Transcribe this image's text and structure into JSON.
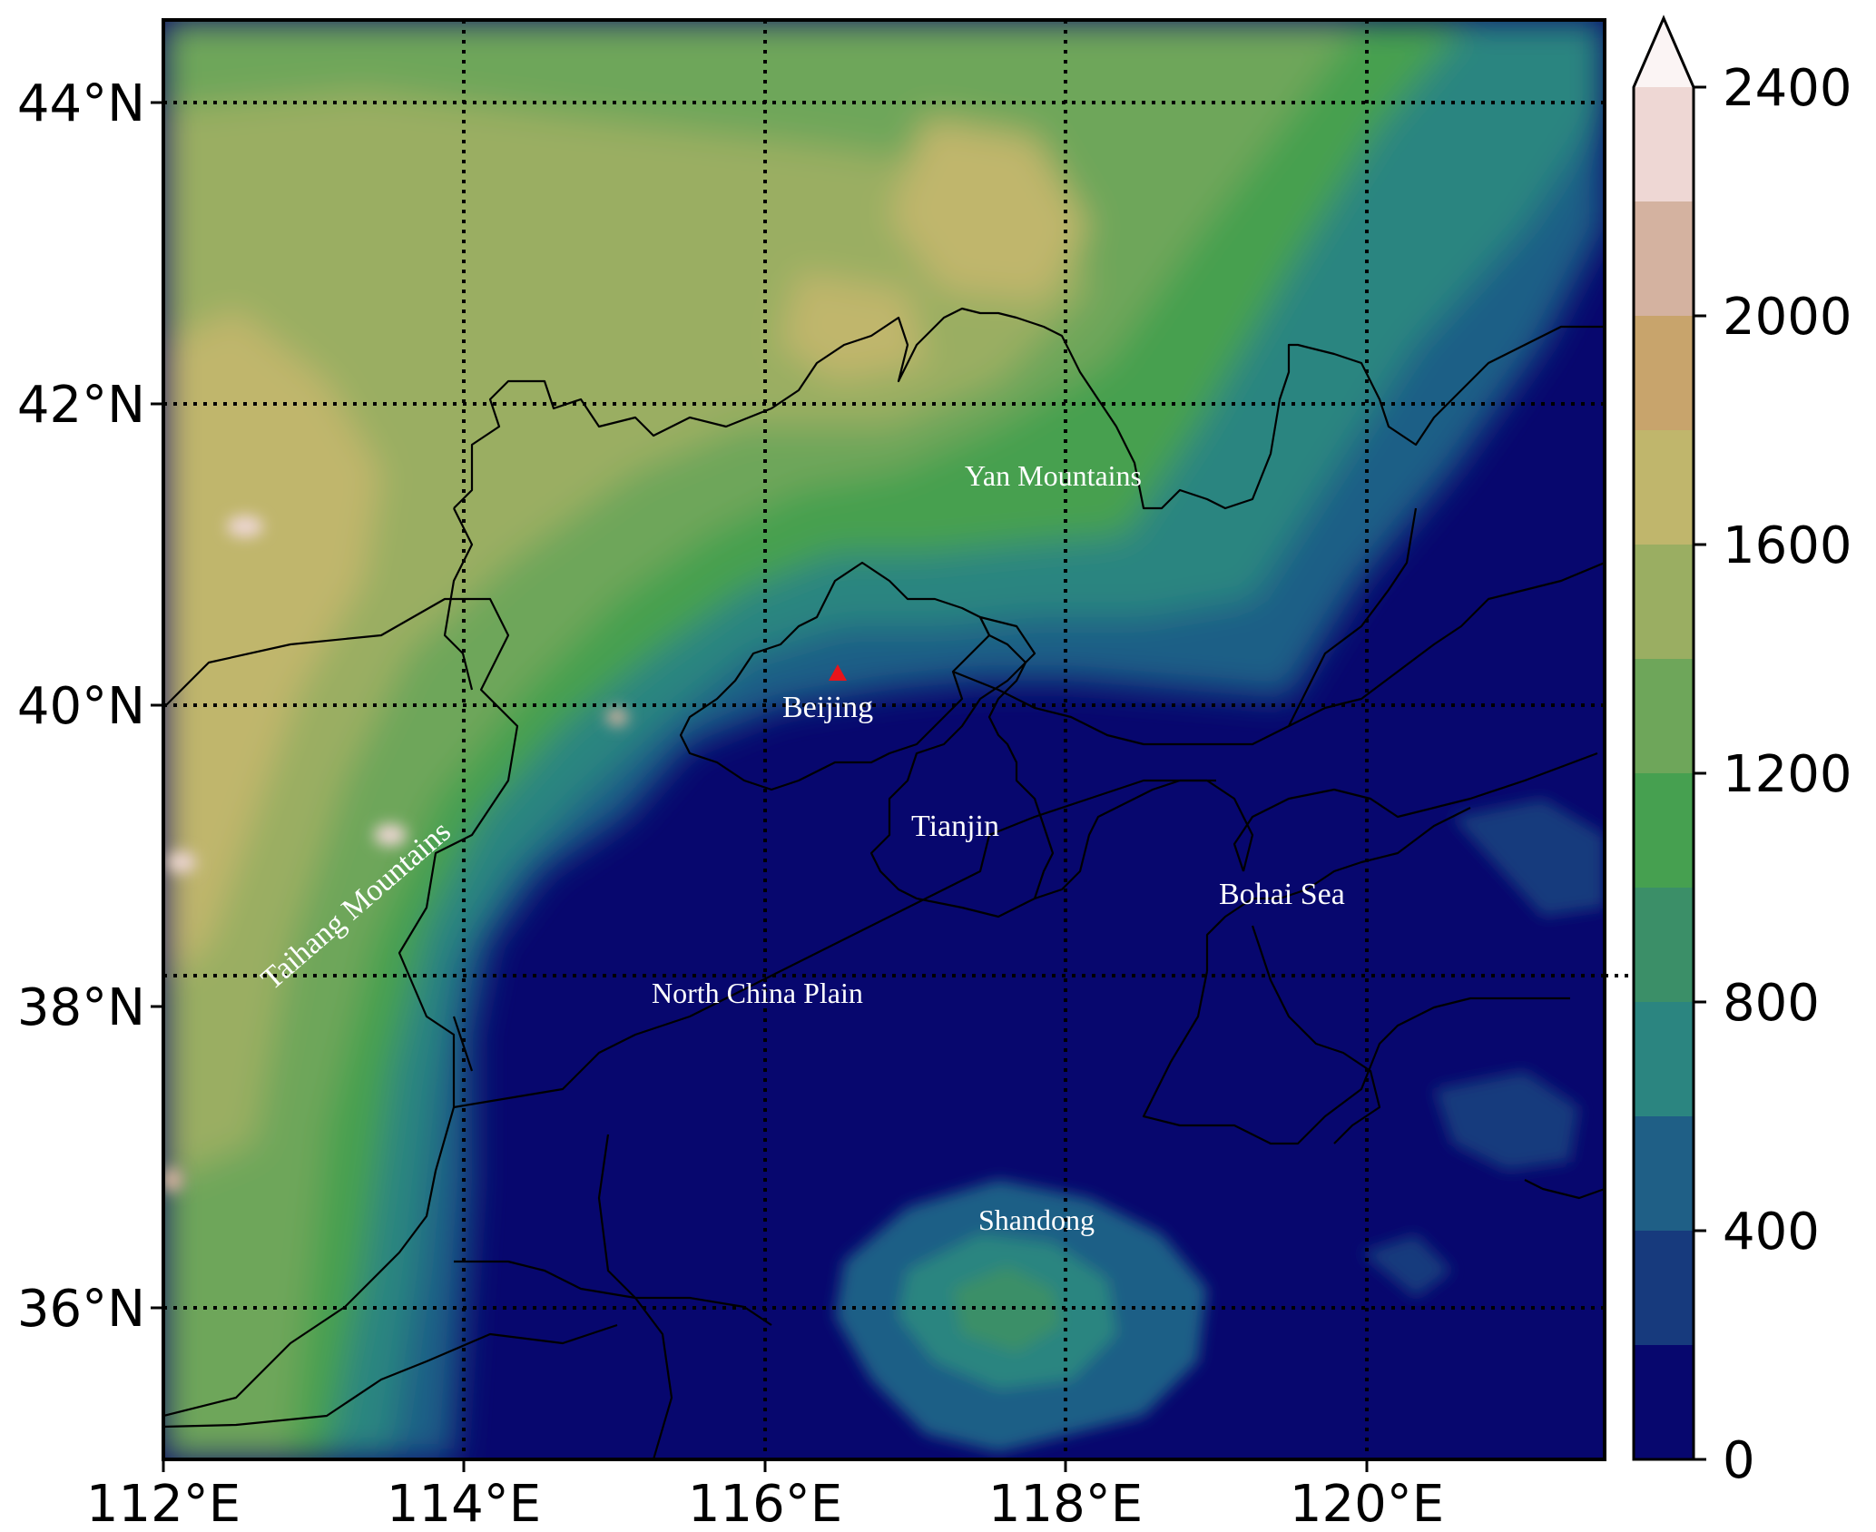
{
  "map": {
    "lon_range": [
      112,
      121.8
    ],
    "lat_range": [
      35,
      44.5
    ],
    "x_ticks": [
      "112°E",
      "114°E",
      "116°E",
      "118°E",
      "120°E"
    ],
    "y_ticks": [
      "44°N",
      "42°N",
      "40°N",
      "38°N",
      "36°N"
    ],
    "grid": "dotted",
    "labels": {
      "yan": "Yan Mountains",
      "beijing": "Beijing",
      "tianjin": "Tianjin",
      "bohai": "Bohai Sea",
      "taihang": "Taihang Mountains",
      "ncp": "North China Plain",
      "shandong": "Shandong"
    },
    "marker": {
      "name": "Beijing",
      "lon": 116.47,
      "lat": 40.2,
      "color": "#e8141a",
      "symbol": "triangle"
    }
  },
  "colorbar": {
    "min": 0,
    "max": 2400,
    "extend": "max",
    "tick_labels": [
      "2400",
      "2000",
      "1600",
      "1200",
      "800",
      "400",
      "0"
    ],
    "levels": [
      0,
      200,
      400,
      600,
      800,
      1000,
      1200,
      1400,
      1600,
      1800,
      2000,
      2200,
      2400
    ],
    "colors": [
      "#07076e",
      "#173a7d",
      "#1f5f86",
      "#2b8580",
      "#3b8f68",
      "#46a050",
      "#6ea65a",
      "#9aae62",
      "#c0b66c",
      "#c8a46c",
      "#d4b2a0",
      "#eed7d4",
      "#fbf4f4"
    ]
  }
}
